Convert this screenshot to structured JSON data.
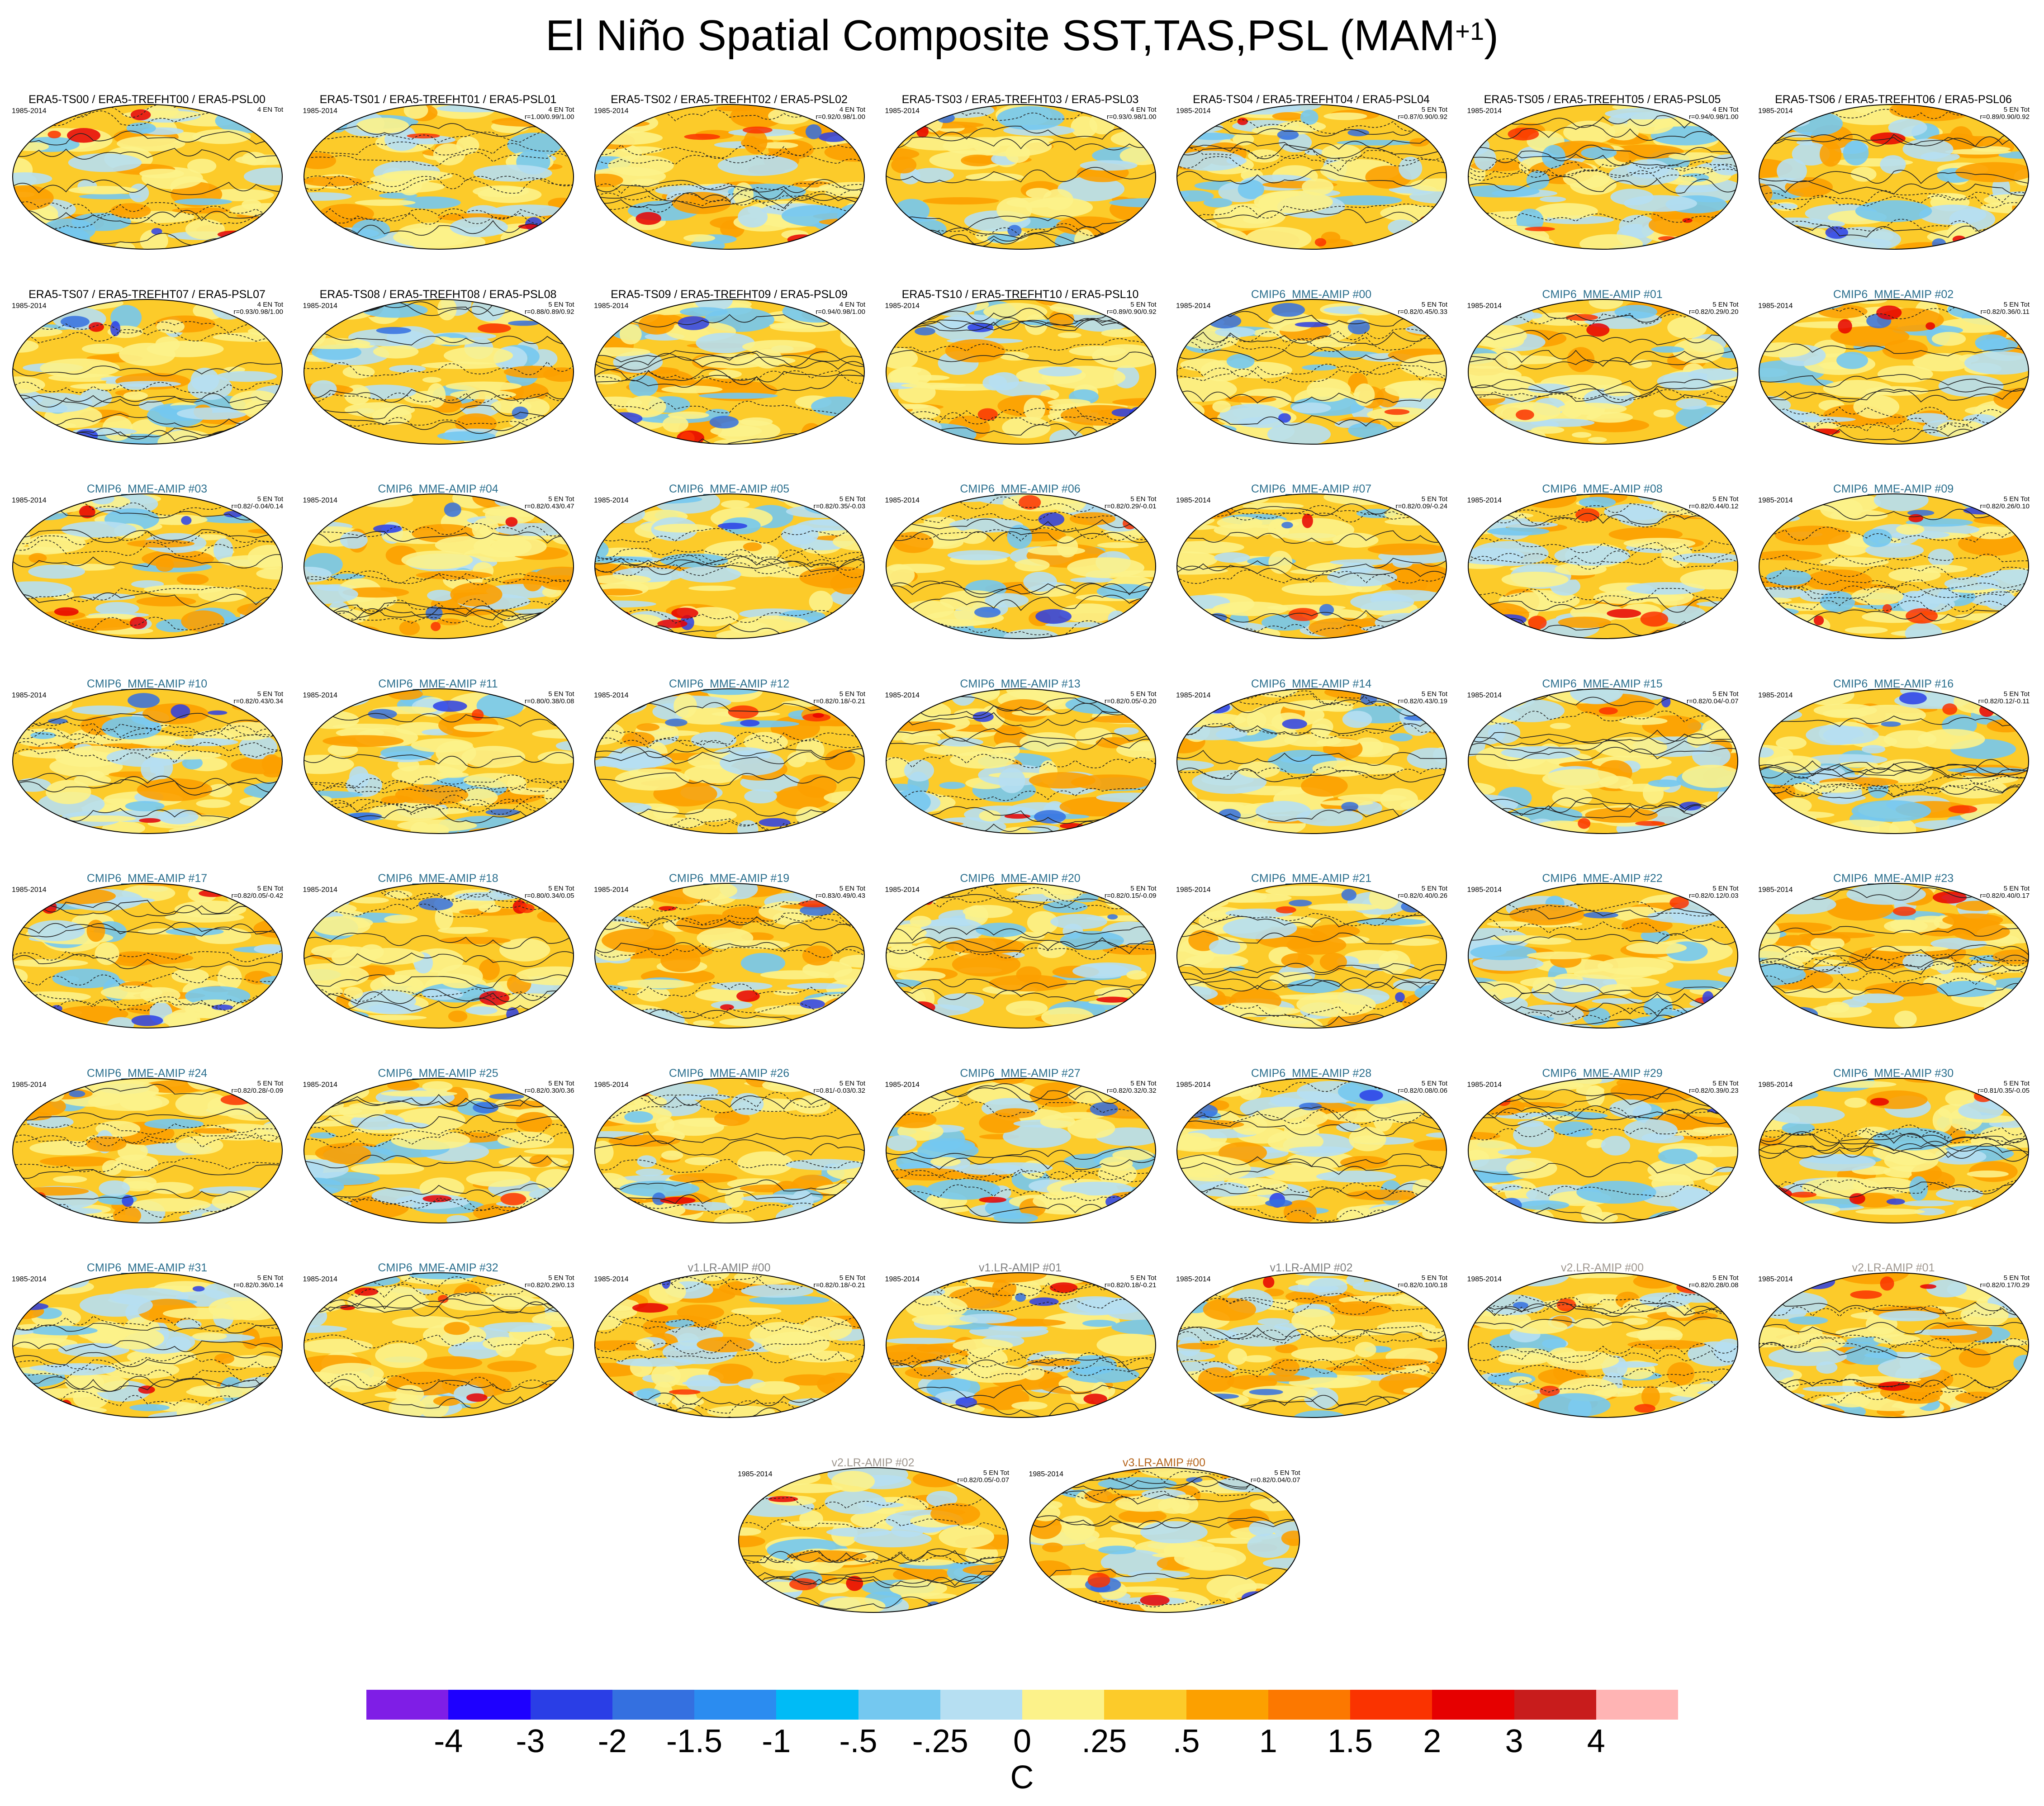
{
  "page": {
    "title": "El Niño Spatial Composite SST,TAS,PSL (MAM",
    "title_sup": "+1",
    "title_end": ")"
  },
  "panel_years": "1985-2014",
  "panels": [
    {
      "title": "ERA5-TS00 / ERA5-TREFHT00 / ERA5-PSL00",
      "color": "#000000",
      "count": "4 EN Tot",
      "stat": ""
    },
    {
      "title": "ERA5-TS01 / ERA5-TREFHT01 / ERA5-PSL01",
      "color": "#000000",
      "count": "4 EN Tot",
      "stat": "r=1.00/0.99/1.00"
    },
    {
      "title": "ERA5-TS02 / ERA5-TREFHT02 / ERA5-PSL02",
      "color": "#000000",
      "count": "4 EN Tot",
      "stat": "r=0.92/0.98/1.00"
    },
    {
      "title": "ERA5-TS03 / ERA5-TREFHT03 / ERA5-PSL03",
      "color": "#000000",
      "count": "4 EN Tot",
      "stat": "r=0.93/0.98/1.00"
    },
    {
      "title": "ERA5-TS04 / ERA5-TREFHT04 / ERA5-PSL04",
      "color": "#000000",
      "count": "5 EN Tot",
      "stat": "r=0.87/0.90/0.92"
    },
    {
      "title": "ERA5-TS05 / ERA5-TREFHT05 / ERA5-PSL05",
      "color": "#000000",
      "count": "4 EN Tot",
      "stat": "r=0.94/0.98/1.00"
    },
    {
      "title": "ERA5-TS06 / ERA5-TREFHT06 / ERA5-PSL06",
      "color": "#000000",
      "count": "5 EN Tot",
      "stat": "r=0.89/0.90/0.92"
    },
    {
      "title": "ERA5-TS07 / ERA5-TREFHT07 / ERA5-PSL07",
      "color": "#000000",
      "count": "4 EN Tot",
      "stat": "r=0.93/0.98/1.00"
    },
    {
      "title": "ERA5-TS08 / ERA5-TREFHT08 / ERA5-PSL08",
      "color": "#000000",
      "count": "5 EN Tot",
      "stat": "r=0.88/0.89/0.92"
    },
    {
      "title": "ERA5-TS09 / ERA5-TREFHT09 / ERA5-PSL09",
      "color": "#000000",
      "count": "4 EN Tot",
      "stat": "r=0.94/0.98/1.00"
    },
    {
      "title": "ERA5-TS10 / ERA5-TREFHT10 / ERA5-PSL10",
      "color": "#000000",
      "count": "5 EN Tot",
      "stat": "r=0.89/0.90/0.92"
    },
    {
      "title": "CMIP6_MME-AMIP  #00",
      "color": "#2b6f8e",
      "count": "5 EN Tot",
      "stat": "r=0.82/0.45/0.33"
    },
    {
      "title": "CMIP6_MME-AMIP  #01",
      "color": "#2b6f8e",
      "count": "5 EN Tot",
      "stat": "r=0.82/0.29/0.20"
    },
    {
      "title": "CMIP6_MME-AMIP  #02",
      "color": "#2b6f8e",
      "count": "5 EN Tot",
      "stat": "r=0.82/0.36/0.11"
    },
    {
      "title": "CMIP6_MME-AMIP  #03",
      "color": "#2b6f8e",
      "count": "5 EN Tot",
      "stat": "r=0.82/-0.04/0.14"
    },
    {
      "title": "CMIP6_MME-AMIP  #04",
      "color": "#2b6f8e",
      "count": "5 EN Tot",
      "stat": "r=0.82/0.43/0.47"
    },
    {
      "title": "CMIP6_MME-AMIP  #05",
      "color": "#2b6f8e",
      "count": "5 EN Tot",
      "stat": "r=0.82/0.35/-0.03"
    },
    {
      "title": "CMIP6_MME-AMIP  #06",
      "color": "#2b6f8e",
      "count": "5 EN Tot",
      "stat": "r=0.82/0.29/-0.01"
    },
    {
      "title": "CMIP6_MME-AMIP  #07",
      "color": "#2b6f8e",
      "count": "5 EN Tot",
      "stat": "r=0.82/0.09/-0.24"
    },
    {
      "title": "CMIP6_MME-AMIP  #08",
      "color": "#2b6f8e",
      "count": "5 EN Tot",
      "stat": "r=0.82/0.44/0.12"
    },
    {
      "title": "CMIP6_MME-AMIP  #09",
      "color": "#2b6f8e",
      "count": "5 EN Tot",
      "stat": "r=0.82/0.26/0.10"
    },
    {
      "title": "CMIP6_MME-AMIP  #10",
      "color": "#2b6f8e",
      "count": "5 EN Tot",
      "stat": "r=0.82/0.43/0.34"
    },
    {
      "title": "CMIP6_MME-AMIP  #11",
      "color": "#2b6f8e",
      "count": "5 EN Tot",
      "stat": "r=0.80/0.38/0.08"
    },
    {
      "title": "CMIP6_MME-AMIP  #12",
      "color": "#2b6f8e",
      "count": "5 EN Tot",
      "stat": "r=0.82/0.18/-0.21"
    },
    {
      "title": "CMIP6_MME-AMIP  #13",
      "color": "#2b6f8e",
      "count": "5 EN Tot",
      "stat": "r=0.82/0.05/-0.20"
    },
    {
      "title": "CMIP6_MME-AMIP  #14",
      "color": "#2b6f8e",
      "count": "5 EN Tot",
      "stat": "r=0.82/0.43/0.19"
    },
    {
      "title": "CMIP6_MME-AMIP  #15",
      "color": "#2b6f8e",
      "count": "5 EN Tot",
      "stat": "r=0.82/0.04/-0.07"
    },
    {
      "title": "CMIP6_MME-AMIP  #16",
      "color": "#2b6f8e",
      "count": "5 EN Tot",
      "stat": "r=0.82/0.12/-0.11"
    },
    {
      "title": "CMIP6_MME-AMIP  #17",
      "color": "#2b6f8e",
      "count": "5 EN Tot",
      "stat": "r=0.82/0.05/-0.42"
    },
    {
      "title": "CMIP6_MME-AMIP  #18",
      "color": "#2b6f8e",
      "count": "5 EN Tot",
      "stat": "r=0.80/0.34/0.05"
    },
    {
      "title": "CMIP6_MME-AMIP  #19",
      "color": "#2b6f8e",
      "count": "5 EN Tot",
      "stat": "r=0.83/0.49/0.43"
    },
    {
      "title": "CMIP6_MME-AMIP  #20",
      "color": "#2b6f8e",
      "count": "5 EN Tot",
      "stat": "r=0.82/0.15/-0.09"
    },
    {
      "title": "CMIP6_MME-AMIP  #21",
      "color": "#2b6f8e",
      "count": "5 EN Tot",
      "stat": "r=0.82/0.40/0.26"
    },
    {
      "title": "CMIP6_MME-AMIP  #22",
      "color": "#2b6f8e",
      "count": "5 EN Tot",
      "stat": "r=0.82/0.12/0.03"
    },
    {
      "title": "CMIP6_MME-AMIP  #23",
      "color": "#2b6f8e",
      "count": "5 EN Tot",
      "stat": "r=0.82/0.40/0.17"
    },
    {
      "title": "CMIP6_MME-AMIP  #24",
      "color": "#2b6f8e",
      "count": "5 EN Tot",
      "stat": "r=0.82/0.28/-0.09"
    },
    {
      "title": "CMIP6_MME-AMIP  #25",
      "color": "#2b6f8e",
      "count": "5 EN Tot",
      "stat": "r=0.82/0.30/0.36"
    },
    {
      "title": "CMIP6_MME-AMIP  #26",
      "color": "#2b6f8e",
      "count": "5 EN Tot",
      "stat": "r=0.81/-0.03/0.32"
    },
    {
      "title": "CMIP6_MME-AMIP  #27",
      "color": "#2b6f8e",
      "count": "5 EN Tot",
      "stat": "r=0.82/0.32/0.32"
    },
    {
      "title": "CMIP6_MME-AMIP  #28",
      "color": "#2b6f8e",
      "count": "5 EN Tot",
      "stat": "r=0.82/0.08/0.06"
    },
    {
      "title": "CMIP6_MME-AMIP  #29",
      "color": "#2b6f8e",
      "count": "5 EN Tot",
      "stat": "r=0.82/0.39/0.23"
    },
    {
      "title": "CMIP6_MME-AMIP  #30",
      "color": "#2b6f8e",
      "count": "5 EN Tot",
      "stat": "r=0.81/0.35/-0.05"
    },
    {
      "title": "CMIP6_MME-AMIP  #31",
      "color": "#2b6f8e",
      "count": "5 EN Tot",
      "stat": "r=0.82/0.36/0.14"
    },
    {
      "title": "CMIP6_MME-AMIP  #32",
      "color": "#2b6f8e",
      "count": "5 EN Tot",
      "stat": "r=0.82/0.29/0.13"
    },
    {
      "title": "v1.LR-AMIP  #00",
      "color": "#808080",
      "count": "5 EN Tot",
      "stat": "r=0.82/0.18/-0.21"
    },
    {
      "title": "v1.LR-AMIP  #01",
      "color": "#808080",
      "count": "5 EN Tot",
      "stat": "r=0.82/0.18/-0.21"
    },
    {
      "title": "v1.LR-AMIP  #02",
      "color": "#808080",
      "count": "5 EN Tot",
      "stat": "r=0.82/0.10/0.18"
    },
    {
      "title": "v2.LR-AMIP  #00",
      "color": "#a09890",
      "count": "5 EN Tot",
      "stat": "r=0.82/0.28/0.08"
    },
    {
      "title": "v2.LR-AMIP  #01",
      "color": "#a09890",
      "count": "5 EN Tot",
      "stat": "r=0.82/0.17/0.29"
    },
    {
      "title": "v2.LR-AMIP  #02",
      "color": "#a09890",
      "count": "5 EN Tot",
      "stat": "r=0.82/0.05/-0.07"
    },
    {
      "title": "v3.LR-AMIP  #00",
      "color": "#b5651d",
      "count": "5 EN Tot",
      "stat": "r=0.82/0.04/0.07"
    }
  ],
  "colorbar": {
    "unit": "C",
    "labels": [
      "-4",
      "-3",
      "-2",
      "-1.5",
      "-1",
      "-.5",
      "-.25",
      "0",
      ".25",
      ".5",
      "1",
      "1.5",
      "2",
      "3",
      "4"
    ],
    "colors": [
      "#7f1ee6",
      "#1e00ff",
      "#2a3ee6",
      "#3470e0",
      "#2b8cf0",
      "#00bbf6",
      "#74c8f0",
      "#b6dff2",
      "#fcf28a",
      "#fccb2a",
      "#fca000",
      "#fc7800",
      "#fa3300",
      "#e60000",
      "#c81c1c",
      "#ffb4b4"
    ]
  }
}
